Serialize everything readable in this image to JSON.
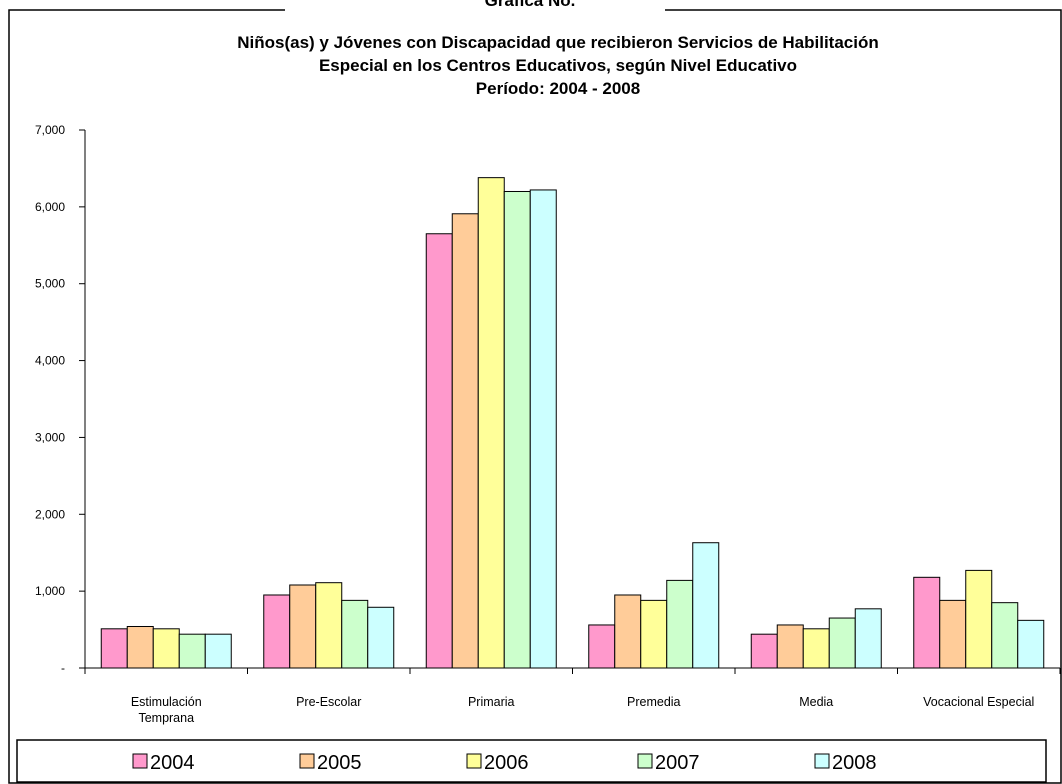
{
  "chart_data": {
    "type": "bar",
    "heading_fragment": "Gráfica No.",
    "title_lines": [
      "Niños(as) y Jóvenes con Discapacidad que recibieron Servicios de Habilitación",
      "Especial en los Centros Educativos, según Nivel Educativo",
      "Período:  2004 - 2008"
    ],
    "categories": [
      [
        "Estimulación",
        "Temprana"
      ],
      [
        "Pre-Escolar"
      ],
      [
        "Primaria"
      ],
      [
        "Premedia"
      ],
      [
        "Media"
      ],
      [
        "Vocacional Especial"
      ]
    ],
    "series": [
      {
        "name": "2004",
        "color": "#FF99CC",
        "values": [
          510,
          950,
          5650,
          560,
          440,
          1180
        ]
      },
      {
        "name": "2005",
        "color": "#FFCC99",
        "values": [
          540,
          1080,
          5910,
          950,
          560,
          880
        ]
      },
      {
        "name": "2006",
        "color": "#FFFF99",
        "values": [
          510,
          1110,
          6380,
          880,
          510,
          1270
        ]
      },
      {
        "name": "2007",
        "color": "#CCFFCC",
        "values": [
          440,
          880,
          6200,
          1140,
          650,
          850
        ]
      },
      {
        "name": "2008",
        "color": "#CCFFFF",
        "values": [
          440,
          790,
          6220,
          1630,
          770,
          620
        ]
      }
    ],
    "ylim": [
      0,
      7000
    ],
    "y_ticks": [
      {
        "value": 0,
        "label": "-"
      },
      {
        "value": 1000,
        "label": "1,000"
      },
      {
        "value": 2000,
        "label": "2,000"
      },
      {
        "value": 3000,
        "label": "3,000"
      },
      {
        "value": 4000,
        "label": "4,000"
      },
      {
        "value": 5000,
        "label": "5,000"
      },
      {
        "value": 6000,
        "label": "6,000"
      },
      {
        "value": 7000,
        "label": "7,000"
      }
    ],
    "grid": false,
    "legend_position": "bottom"
  }
}
